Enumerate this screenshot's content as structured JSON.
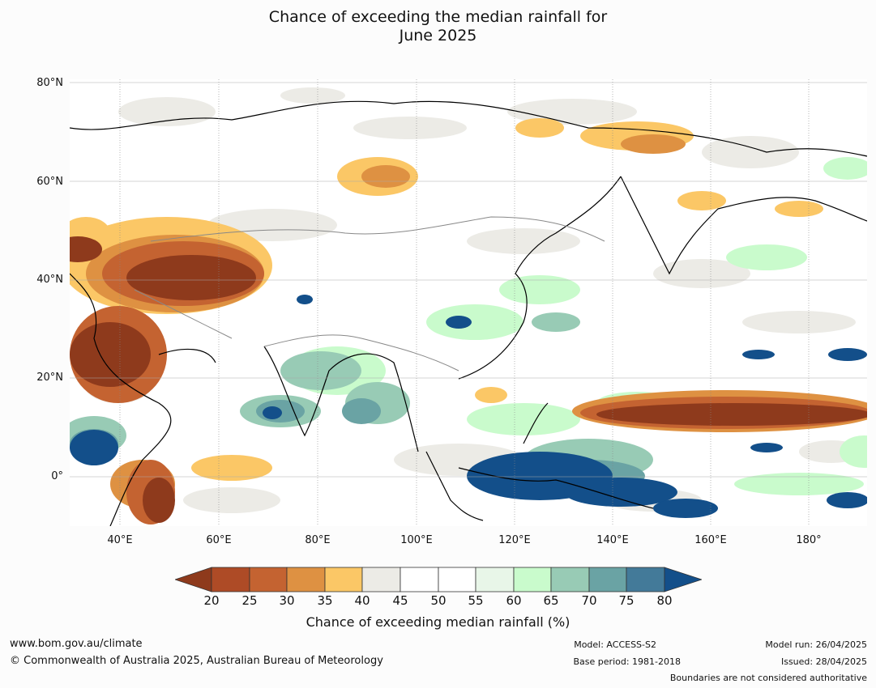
{
  "title": {
    "line1": "Chance of exceeding the median rainfall for",
    "line2": "June 2025"
  },
  "map": {
    "lat_labels": [
      "80°N",
      "60°N",
      "40°N",
      "20°N",
      "0°"
    ],
    "lon_labels": [
      "40°E",
      "60°E",
      "80°E",
      "100°E",
      "120°E",
      "140°E",
      "160°E",
      "180°"
    ],
    "colors": {
      "below_20": "#8e3a1c",
      "c20_25": "#ae4b26",
      "c25_30": "#c46331",
      "c30_35": "#de9142",
      "c35_40": "#fbc766",
      "c40_45": "#ecebe6",
      "c45_55": "#ffffff",
      "c55_60": "#e8f6e8",
      "c60_65": "#c9fbcc",
      "c65_70": "#98cbb5",
      "c70_75": "#6aa3a4",
      "c75_80": "#437a99",
      "above_80": "#134f8a"
    }
  },
  "colorbar": {
    "ticks": [
      "20",
      "25",
      "30",
      "35",
      "40",
      "45",
      "50",
      "55",
      "60",
      "65",
      "70",
      "75",
      "80"
    ],
    "label": "Chance of exceeding median rainfall (%)"
  },
  "footer": {
    "url": "www.bom.gov.au/climate",
    "copyright": "© Commonwealth of Australia 2025, Australian Bureau of Meteorology",
    "model": "Model: ACCESS-S2",
    "base_period": "Base period: 1981-2018",
    "model_run": "Model run: 26/04/2025",
    "issued": "Issued: 28/04/2025",
    "disclaimer": "Boundaries are not considered authoritative"
  }
}
